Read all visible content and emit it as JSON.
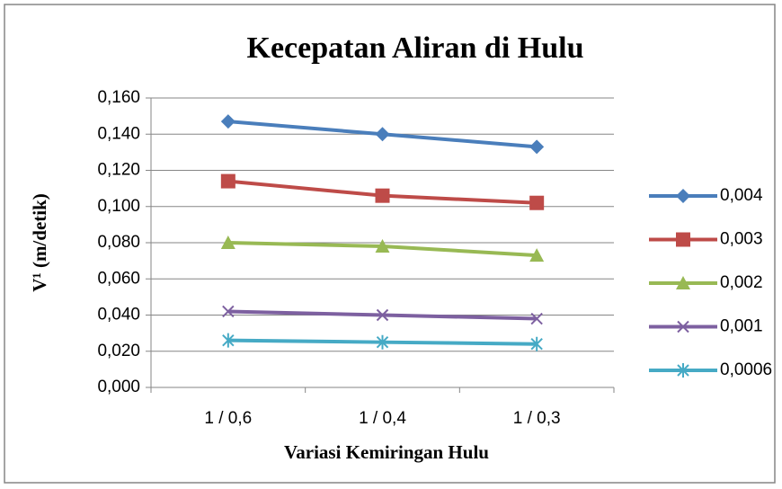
{
  "chart_data": {
    "type": "line",
    "title": "Kecepatan Aliran di Hulu",
    "x_label": "Variasi Kemiringan Hulu",
    "y_label": "V¹ (m/detik)",
    "categories": [
      "1 / 0,6",
      "1 / 0,4",
      "1 / 0,3"
    ],
    "series": [
      {
        "name": "0,004",
        "color": "#4a7ebb",
        "marker": "diamond",
        "values": [
          0.147,
          0.14,
          0.133
        ]
      },
      {
        "name": "0,003",
        "color": "#be4b48",
        "marker": "square",
        "values": [
          0.114,
          0.106,
          0.102
        ]
      },
      {
        "name": "0,002",
        "color": "#98b954",
        "marker": "triangle",
        "values": [
          0.08,
          0.078,
          0.073
        ]
      },
      {
        "name": "0,001",
        "color": "#7d60a0",
        "marker": "x",
        "values": [
          0.042,
          0.04,
          0.038
        ]
      },
      {
        "name": "0,0006",
        "color": "#46aac5",
        "marker": "star",
        "values": [
          0.026,
          0.025,
          0.024
        ]
      }
    ],
    "ylim": [
      0,
      0.16
    ],
    "yticks": [
      {
        "value": 0,
        "label": "0,000"
      },
      {
        "value": 0.02,
        "label": "0,020"
      },
      {
        "value": 0.04,
        "label": "0,040"
      },
      {
        "value": 0.06,
        "label": "0,060"
      },
      {
        "value": 0.08,
        "label": "0,080"
      },
      {
        "value": 0.1,
        "label": "0,100"
      },
      {
        "value": 0.12,
        "label": "0,120"
      },
      {
        "value": 0.14,
        "label": "0,140"
      },
      {
        "value": 0.16,
        "label": "0,160"
      }
    ],
    "grid": true,
    "legend": "right"
  }
}
